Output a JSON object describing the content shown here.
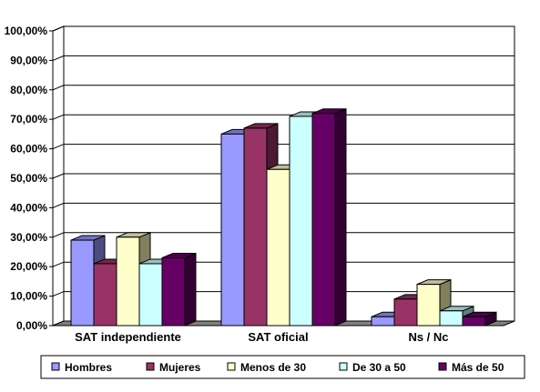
{
  "chart_data": {
    "type": "bar",
    "categories": [
      "SAT independiente",
      "SAT oficial",
      "Ns / Nc"
    ],
    "series": [
      {
        "name": "Hombres",
        "values": [
          29,
          65,
          3
        ]
      },
      {
        "name": "Mujeres",
        "values": [
          21,
          67,
          9
        ]
      },
      {
        "name": "Menos de 30",
        "values": [
          30,
          53,
          14
        ]
      },
      {
        "name": "De 30 a 50",
        "values": [
          21,
          71,
          5
        ]
      },
      {
        "name": "Más de 50",
        "values": [
          23,
          72,
          3
        ]
      }
    ],
    "yticks": [
      "0,00%",
      "10,00%",
      "20,00%",
      "30,00%",
      "40,00%",
      "50,00%",
      "60,00%",
      "70,00%",
      "80,00%",
      "90,00%",
      "100,00%"
    ],
    "ylim": [
      0,
      100
    ],
    "grid": true,
    "legend_position": "bottom",
    "colors": {
      "front": [
        "#9999ff",
        "#993366",
        "#ffffcc",
        "#ccffff",
        "#660066"
      ],
      "side": [
        "#4c4c80",
        "#4c1933",
        "#80805f",
        "#608080",
        "#330033"
      ],
      "top": [
        "#7373bf",
        "#732649",
        "#bfbf99",
        "#99bfbf",
        "#4c004c"
      ],
      "floor": "#808080",
      "wall": "#ffffff"
    }
  }
}
